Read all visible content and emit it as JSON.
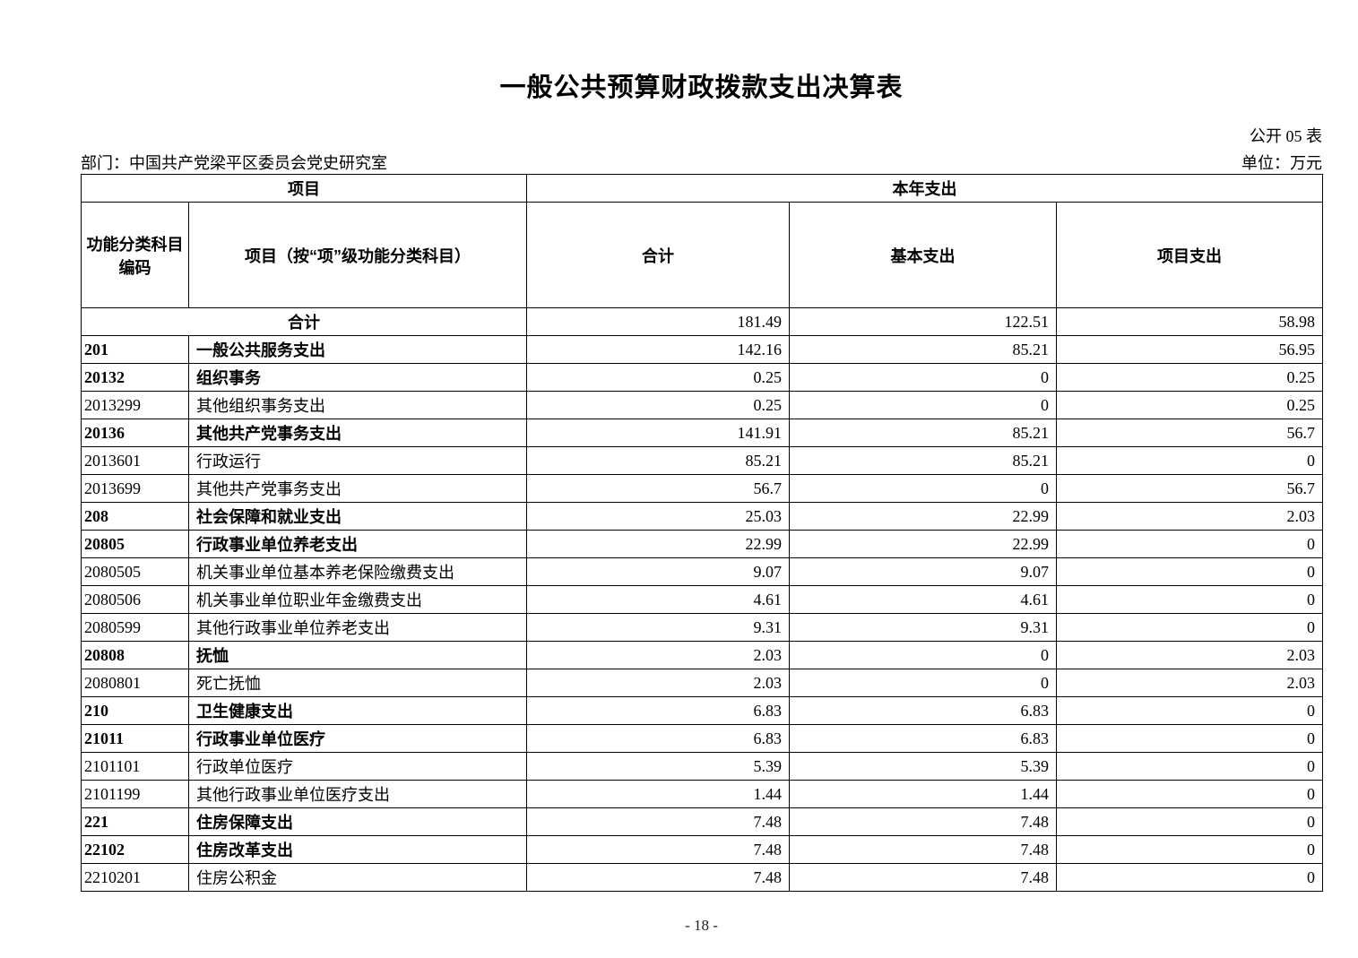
{
  "page": {
    "title": "一般公共预算财政拨款支出决算表",
    "form_code": "公开 05 表",
    "department": "部门：中国共产党梁平区委员会党史研究室",
    "unit": "单位：万元",
    "page_number": "- 18 -"
  },
  "table": {
    "header": {
      "group_item": "项目",
      "group_current_year": "本年支出",
      "col_code_line1": "功能分类科目",
      "col_code_line2": "编码",
      "col_item": "项目（按“项”级功能分类科目）",
      "col_total": "合计",
      "col_basic": "基本支出",
      "col_project": "项目支出"
    },
    "total_row": {
      "label": "合计",
      "total": "181.49",
      "basic": "122.51",
      "project": "58.98"
    },
    "rows": [
      {
        "code": "201",
        "item": "一般公共服务支出",
        "total": "142.16",
        "basic": "85.21",
        "project": "56.95",
        "bold": true
      },
      {
        "code": "20132",
        "item": "组织事务",
        "total": "0.25",
        "basic": "0",
        "project": "0.25",
        "bold": true
      },
      {
        "code": "2013299",
        "item": "其他组织事务支出",
        "total": "0.25",
        "basic": "0",
        "project": "0.25",
        "bold": false
      },
      {
        "code": "20136",
        "item": "其他共产党事务支出",
        "total": "141.91",
        "basic": "85.21",
        "project": "56.7",
        "bold": true
      },
      {
        "code": "2013601",
        "item": "行政运行",
        "total": "85.21",
        "basic": "85.21",
        "project": "0",
        "bold": false
      },
      {
        "code": "2013699",
        "item": "其他共产党事务支出",
        "total": "56.7",
        "basic": "0",
        "project": "56.7",
        "bold": false
      },
      {
        "code": "208",
        "item": "社会保障和就业支出",
        "total": "25.03",
        "basic": "22.99",
        "project": "2.03",
        "bold": true
      },
      {
        "code": "20805",
        "item": "行政事业单位养老支出",
        "total": "22.99",
        "basic": "22.99",
        "project": "0",
        "bold": true
      },
      {
        "code": "2080505",
        "item": "机关事业单位基本养老保险缴费支出",
        "total": "9.07",
        "basic": "9.07",
        "project": "0",
        "bold": false
      },
      {
        "code": "2080506",
        "item": "机关事业单位职业年金缴费支出",
        "total": "4.61",
        "basic": "4.61",
        "project": "0",
        "bold": false
      },
      {
        "code": "2080599",
        "item": "其他行政事业单位养老支出",
        "total": "9.31",
        "basic": "9.31",
        "project": "0",
        "bold": false
      },
      {
        "code": "20808",
        "item": "抚恤",
        "total": "2.03",
        "basic": "0",
        "project": "2.03",
        "bold": true
      },
      {
        "code": "2080801",
        "item": "死亡抚恤",
        "total": "2.03",
        "basic": "0",
        "project": "2.03",
        "bold": false
      },
      {
        "code": "210",
        "item": "卫生健康支出",
        "total": "6.83",
        "basic": "6.83",
        "project": "0",
        "bold": true
      },
      {
        "code": "21011",
        "item": "行政事业单位医疗",
        "total": "6.83",
        "basic": "6.83",
        "project": "0",
        "bold": true
      },
      {
        "code": "2101101",
        "item": "行政单位医疗",
        "total": "5.39",
        "basic": "5.39",
        "project": "0",
        "bold": false
      },
      {
        "code": "2101199",
        "item": "其他行政事业单位医疗支出",
        "total": "1.44",
        "basic": "1.44",
        "project": "0",
        "bold": false
      },
      {
        "code": "221",
        "item": "住房保障支出",
        "total": "7.48",
        "basic": "7.48",
        "project": "0",
        "bold": true
      },
      {
        "code": "22102",
        "item": "住房改革支出",
        "total": "7.48",
        "basic": "7.48",
        "project": "0",
        "bold": true
      },
      {
        "code": "2210201",
        "item": "住房公积金",
        "total": "7.48",
        "basic": "7.48",
        "project": "0",
        "bold": false
      }
    ]
  }
}
